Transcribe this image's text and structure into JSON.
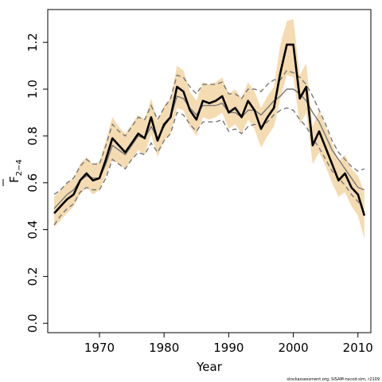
{
  "chart_data": {
    "type": "line",
    "title": "",
    "xlabel": "Year",
    "ylabel": "F",
    "ylabel_subscript": "2−4",
    "xlim": [
      1962,
      2012
    ],
    "ylim": [
      -0.04,
      1.34
    ],
    "xticks": [
      1970,
      1980,
      1990,
      2000,
      2010
    ],
    "xtick_labels": [
      "1970",
      "1980",
      "1990",
      "2000",
      "2010"
    ],
    "yticks": [
      0.0,
      0.2,
      0.4,
      0.6,
      0.8,
      1.0,
      1.2
    ],
    "ytick_labels": [
      "0.0",
      "0.2",
      "0.4",
      "0.6",
      "0.8",
      "1.0",
      "1.2"
    ],
    "grid": false,
    "legend": "none",
    "x": [
      1963,
      1964,
      1965,
      1966,
      1967,
      1968,
      1969,
      1970,
      1971,
      1972,
      1973,
      1974,
      1975,
      1976,
      1977,
      1978,
      1979,
      1980,
      1981,
      1982,
      1983,
      1984,
      1985,
      1986,
      1987,
      1988,
      1989,
      1990,
      1991,
      1992,
      1993,
      1994,
      1995,
      1996,
      1997,
      1998,
      1999,
      2000,
      2001,
      2002,
      2003,
      2004,
      2005,
      2006,
      2007,
      2008,
      2009,
      2010,
      2011
    ],
    "series": [
      {
        "role": "estimate",
        "color": "#000000",
        "values": [
          0.47,
          0.5,
          0.53,
          0.55,
          0.61,
          0.64,
          0.61,
          0.62,
          0.7,
          0.79,
          0.76,
          0.73,
          0.77,
          0.81,
          0.79,
          0.88,
          0.78,
          0.85,
          0.88,
          1.01,
          0.99,
          0.91,
          0.87,
          0.95,
          0.94,
          0.95,
          0.97,
          0.9,
          0.92,
          0.88,
          0.95,
          0.91,
          0.83,
          0.88,
          0.92,
          1.07,
          1.19,
          1.19,
          0.96,
          1.01,
          0.76,
          0.82,
          0.75,
          0.68,
          0.61,
          0.64,
          0.58,
          0.55,
          0.46
        ]
      },
      {
        "role": "band",
        "color": "#f5dbb1",
        "lower": [
          0.41,
          0.44,
          0.47,
          0.5,
          0.55,
          0.58,
          0.55,
          0.57,
          0.63,
          0.7,
          0.68,
          0.66,
          0.7,
          0.74,
          0.72,
          0.81,
          0.71,
          0.78,
          0.81,
          0.92,
          0.91,
          0.84,
          0.8,
          0.88,
          0.87,
          0.88,
          0.9,
          0.83,
          0.85,
          0.81,
          0.87,
          0.83,
          0.75,
          0.8,
          0.84,
          0.96,
          1.06,
          1.05,
          0.85,
          0.9,
          0.68,
          0.73,
          0.67,
          0.6,
          0.54,
          0.56,
          0.5,
          0.46,
          0.36
        ],
        "upper": [
          0.54,
          0.57,
          0.6,
          0.62,
          0.68,
          0.71,
          0.68,
          0.69,
          0.78,
          0.88,
          0.84,
          0.81,
          0.85,
          0.89,
          0.87,
          0.96,
          0.86,
          0.93,
          0.96,
          1.1,
          1.08,
          0.99,
          0.95,
          1.03,
          1.02,
          1.03,
          1.05,
          0.98,
          1.0,
          0.96,
          1.03,
          0.99,
          0.92,
          0.97,
          1.01,
          1.19,
          1.29,
          1.3,
          1.06,
          1.11,
          0.84,
          0.91,
          0.84,
          0.77,
          0.69,
          0.72,
          0.66,
          0.63,
          0.56
        ]
      },
      {
        "role": "simulation-median",
        "color": "#777777",
        "values": [
          0.49,
          0.52,
          0.55,
          0.57,
          0.61,
          0.63,
          0.62,
          0.62,
          0.68,
          0.76,
          0.74,
          0.72,
          0.76,
          0.8,
          0.79,
          0.84,
          0.79,
          0.84,
          0.88,
          0.97,
          0.96,
          0.92,
          0.89,
          0.93,
          0.93,
          0.93,
          0.94,
          0.9,
          0.9,
          0.88,
          0.91,
          0.91,
          0.89,
          0.92,
          0.95,
          0.97,
          1.0,
          1.0,
          0.98,
          0.95,
          0.9,
          0.86,
          0.8,
          0.74,
          0.7,
          0.66,
          0.62,
          0.58,
          0.57
        ]
      },
      {
        "role": "simulation-upper",
        "color": "#777777",
        "values": [
          0.55,
          0.57,
          0.6,
          0.62,
          0.67,
          0.7,
          0.68,
          0.68,
          0.76,
          0.85,
          0.82,
          0.8,
          0.84,
          0.88,
          0.87,
          0.93,
          0.87,
          0.92,
          0.96,
          1.06,
          1.05,
          1.01,
          0.98,
          1.02,
          1.02,
          1.02,
          1.03,
          0.98,
          0.98,
          0.96,
          1.0,
          1.0,
          0.99,
          1.02,
          1.04,
          1.04,
          1.08,
          1.07,
          1.05,
          1.02,
          0.97,
          0.91,
          0.85,
          0.78,
          0.73,
          0.7,
          0.67,
          0.65,
          0.66
        ]
      },
      {
        "role": "simulation-lower",
        "color": "#777777",
        "values": [
          0.42,
          0.46,
          0.49,
          0.51,
          0.56,
          0.58,
          0.57,
          0.57,
          0.62,
          0.7,
          0.68,
          0.66,
          0.7,
          0.73,
          0.72,
          0.77,
          0.73,
          0.78,
          0.81,
          0.9,
          0.89,
          0.85,
          0.82,
          0.86,
          0.86,
          0.86,
          0.87,
          0.82,
          0.83,
          0.81,
          0.84,
          0.85,
          0.84,
          0.86,
          0.89,
          0.91,
          0.92,
          0.91,
          0.87,
          0.84,
          0.79,
          0.75,
          0.7,
          0.65,
          0.62,
          0.59,
          0.55,
          0.52,
          0.48
        ]
      }
    ]
  },
  "footnote": "stockassessment.org, SISAM-nscod-sim, r2109"
}
